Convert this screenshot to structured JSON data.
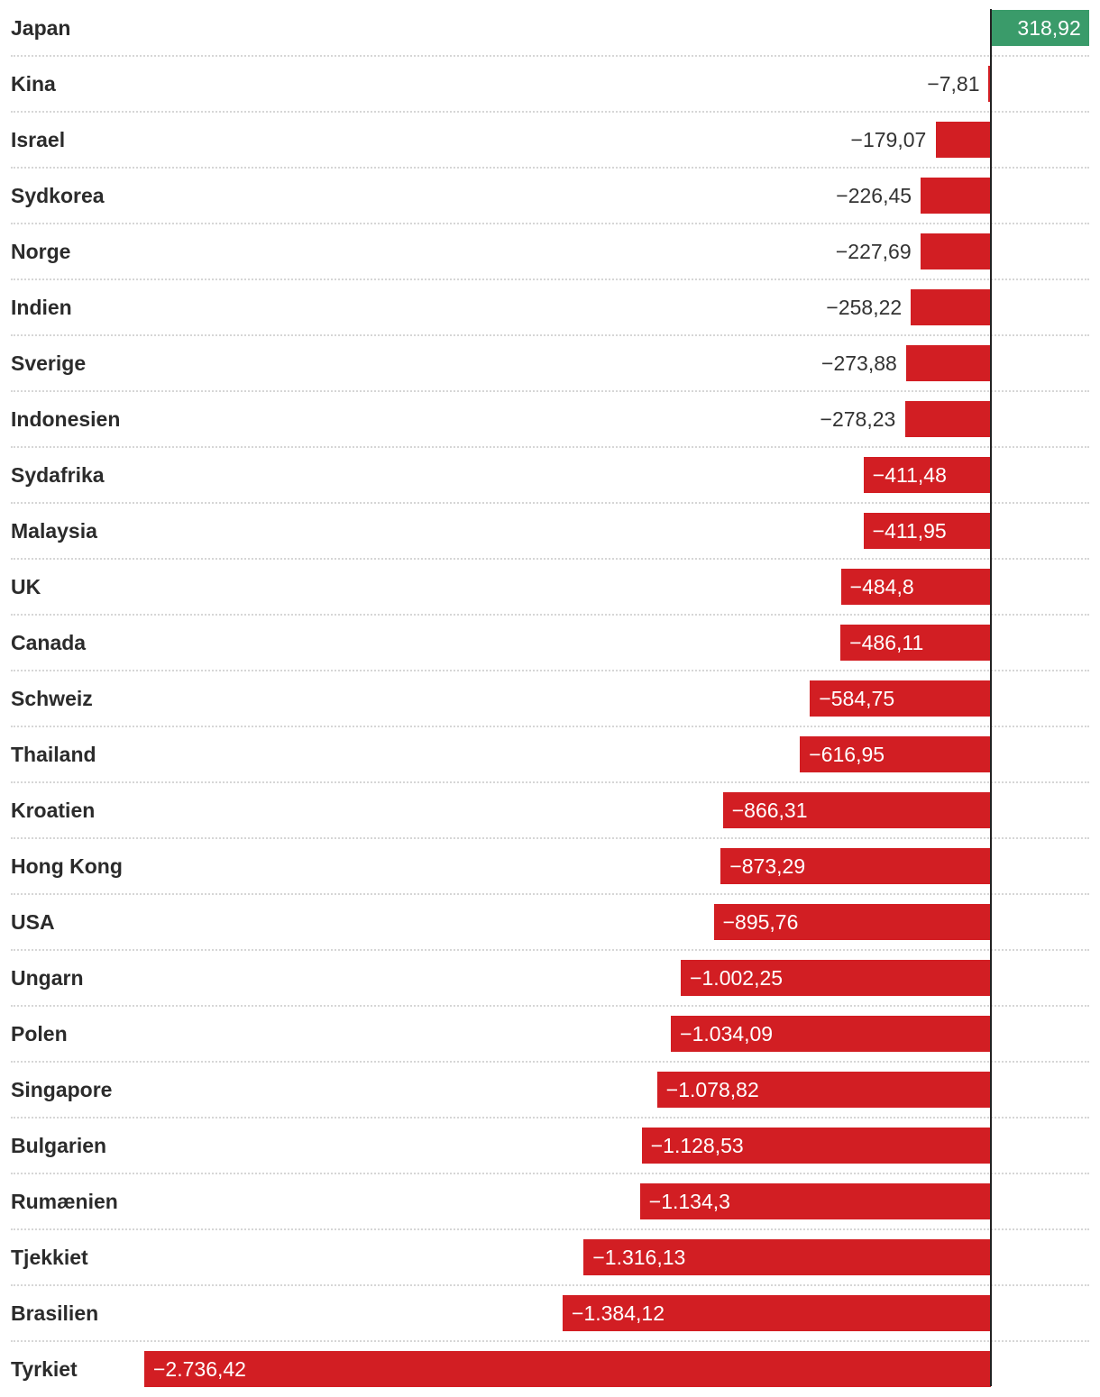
{
  "chart_data": {
    "type": "bar",
    "orientation": "horizontal",
    "categories": [
      "Japan",
      "Kina",
      "Israel",
      "Sydkorea",
      "Norge",
      "Indien",
      "Sverige",
      "Indonesien",
      "Sydafrika",
      "Malaysia",
      "UK",
      "Canada",
      "Schweiz",
      "Thailand",
      "Kroatien",
      "Hong Kong",
      "USA",
      "Ungarn",
      "Polen",
      "Singapore",
      "Bulgarien",
      "Rumænien",
      "Tjekkiet",
      "Brasilien",
      "Tyrkiet"
    ],
    "values": [
      318.92,
      -7.81,
      -179.07,
      -226.45,
      -227.69,
      -258.22,
      -273.88,
      -278.23,
      -411.48,
      -411.95,
      -484.8,
      -486.11,
      -584.75,
      -616.95,
      -866.31,
      -873.29,
      -895.76,
      -1002.25,
      -1034.09,
      -1078.82,
      -1128.53,
      -1134.3,
      -1316.13,
      -1384.12,
      -2736.42
    ],
    "value_labels": [
      "318,92",
      "−7,81",
      "−179,07",
      "−226,45",
      "−227,69",
      "−258,22",
      "−273,88",
      "−278,23",
      "−411,48",
      "−411,95",
      "−484,8",
      "−486,11",
      "−584,75",
      "−616,95",
      "−866,31",
      "−873,29",
      "−895,76",
      "−1.002,25",
      "−1.034,09",
      "−1.078,82",
      "−1.128,53",
      "−1.134,3",
      "−1.316,13",
      "−1.384,12",
      "−2.736,42"
    ],
    "xlim": [
      -2736.42,
      318.92
    ],
    "title": "",
    "xlabel": "",
    "ylabel": "",
    "grid": false,
    "colors": {
      "positive": "#3a9b6a",
      "negative": "#d21e23",
      "axis": "#222222"
    }
  }
}
